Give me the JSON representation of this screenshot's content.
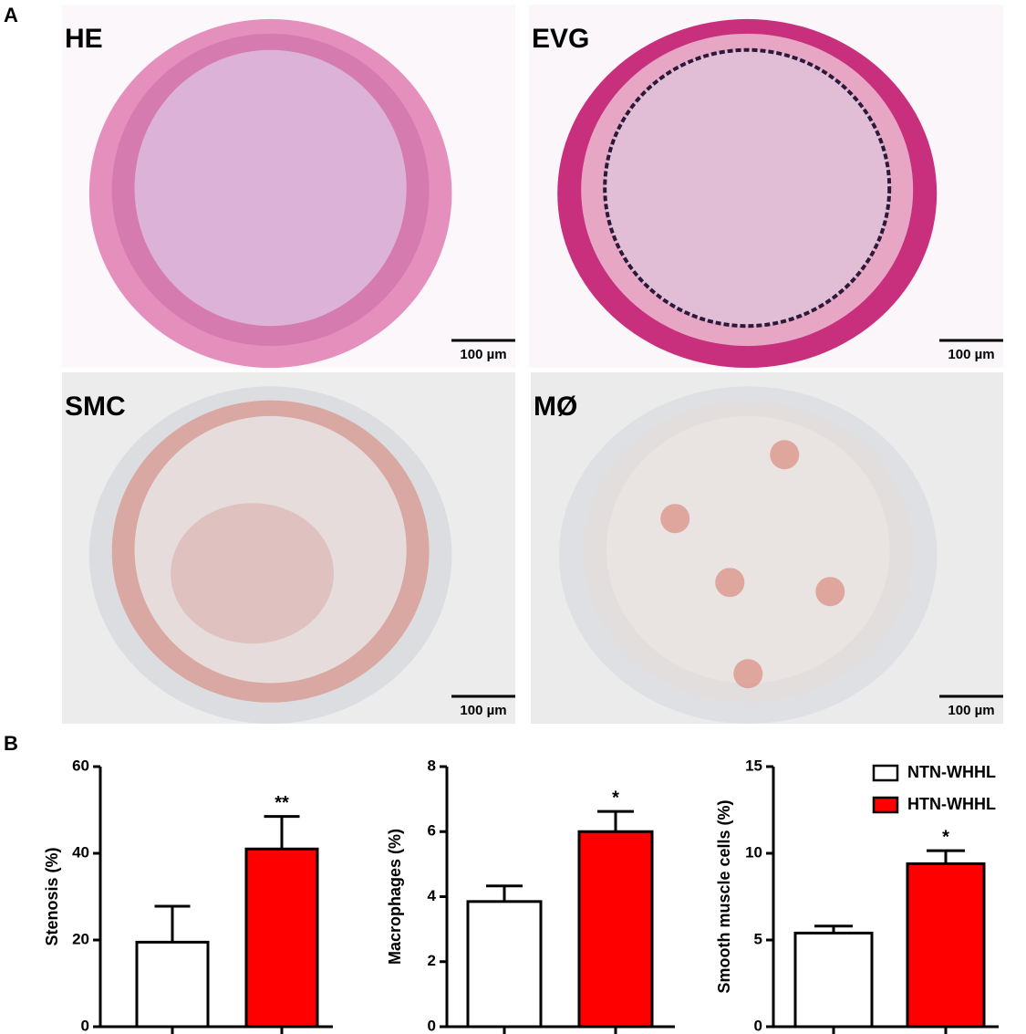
{
  "panel_labels": [
    "A",
    "B"
  ],
  "micrographs": [
    {
      "label": "HE",
      "scale_bar": "100 µm"
    },
    {
      "label": "EVG",
      "scale_bar": "100 µm"
    },
    {
      "label": "SMC",
      "scale_bar": "100 µm"
    },
    {
      "label": "MØ",
      "scale_bar": "100 µm"
    }
  ],
  "chart_data": [
    {
      "type": "bar",
      "y_label": "Stenosis (%)",
      "ylim": [
        0,
        60
      ],
      "yticks": [
        0,
        20,
        40,
        60
      ],
      "series": [
        {
          "color": "#ffffff",
          "values": [
            19.5
          ],
          "errors": [
            8.3
          ]
        },
        {
          "color": "#ff0000",
          "values": [
            41
          ],
          "errors": [
            7.5
          ],
          "annotation": "**"
        }
      ]
    },
    {
      "type": "bar",
      "y_label": "Macrophages (%)",
      "ylim": [
        0,
        8
      ],
      "yticks": [
        0,
        2,
        4,
        6,
        8
      ],
      "series": [
        {
          "color": "#ffffff",
          "values": [
            3.85
          ],
          "errors": [
            0.48
          ]
        },
        {
          "color": "#ff0000",
          "values": [
            6.0
          ],
          "errors": [
            0.62
          ],
          "annotation": "*"
        }
      ]
    },
    {
      "type": "bar",
      "y_label": "Smooth muscle cells (%)",
      "ylim": [
        0,
        15
      ],
      "yticks": [
        0,
        5,
        10,
        15
      ],
      "series": [
        {
          "name": "NTN-WHHL",
          "color": "#ffffff",
          "values": [
            5.4
          ],
          "errors": [
            0.4
          ]
        },
        {
          "name": "HTN-WHHL",
          "color": "#ff0000",
          "values": [
            9.4
          ],
          "errors": [
            0.75
          ],
          "annotation": "*"
        }
      ]
    }
  ]
}
